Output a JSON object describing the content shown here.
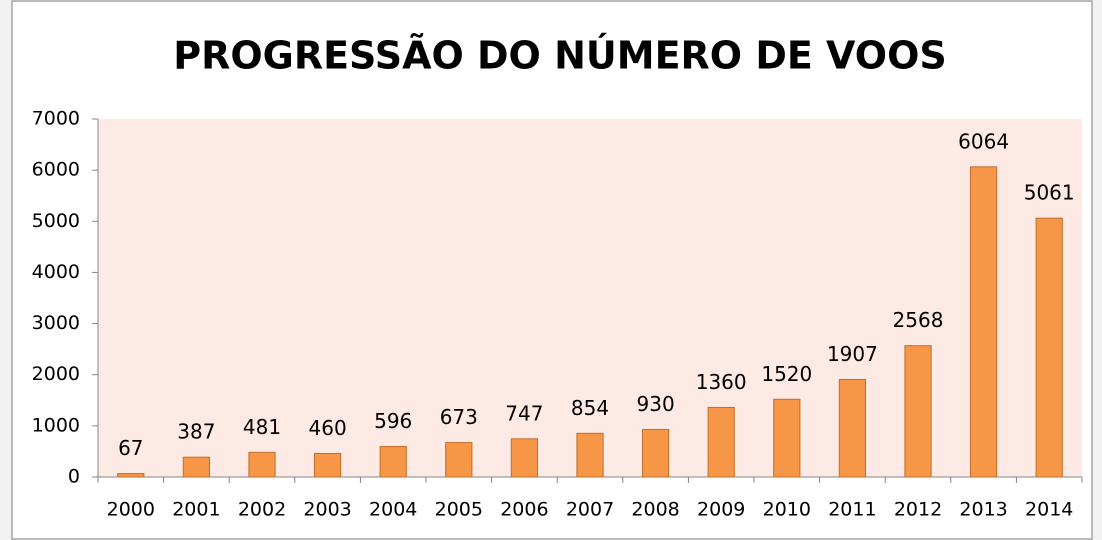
{
  "chart_data": {
    "type": "bar",
    "title": "PROGRESSÃO DO NÚMERO DE VOOS",
    "categories": [
      "2000",
      "2001",
      "2002",
      "2003",
      "2004",
      "2005",
      "2006",
      "2007",
      "2008",
      "2009",
      "2010",
      "2011",
      "2012",
      "2013",
      "2014"
    ],
    "values": [
      67,
      387,
      481,
      460,
      596,
      673,
      747,
      854,
      930,
      1360,
      1520,
      1907,
      2568,
      6064,
      5061
    ],
    "color": "#f79646",
    "ylim": [
      0,
      7000
    ],
    "yticks": [
      0,
      1000,
      2000,
      3000,
      4000,
      5000,
      6000,
      7000
    ],
    "grid": false
  }
}
